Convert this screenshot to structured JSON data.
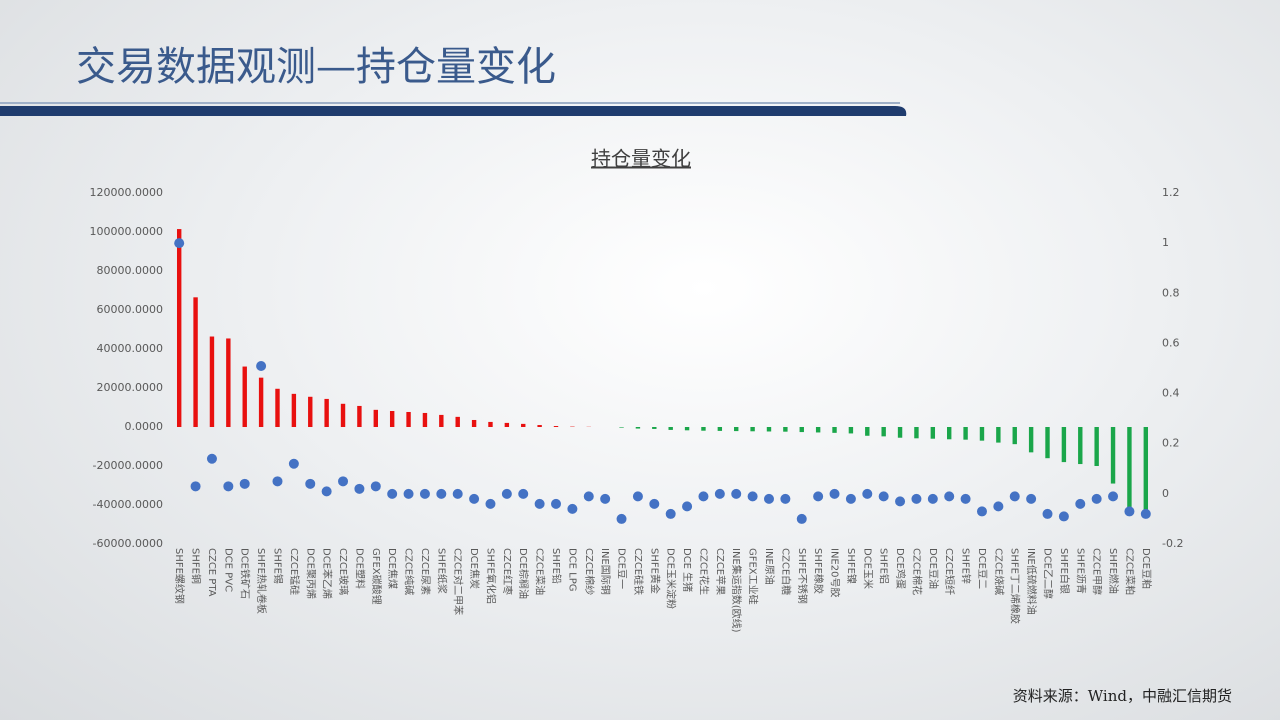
{
  "page": {
    "title": "交易数据观测—持仓量变化",
    "source": "资料来源：Wind，中融汇信期货"
  },
  "chart_data": {
    "type": "bar",
    "title": "持仓量变化",
    "categories": [
      "SHFE螺纹钢",
      "SHFE铜",
      "CZCE PTA",
      "DCE PVC",
      "DCE铁矿石",
      "SHFE热轧卷板",
      "SHFE锡",
      "CZCE锰硅",
      "DCE聚丙烯",
      "DCE苯乙烯",
      "CZCE玻璃",
      "DCE塑料",
      "GFEX碳酸锂",
      "DCE焦煤",
      "CZCE纯碱",
      "CZCE尿素",
      "SHFE纸浆",
      "CZCE对二甲苯",
      "DCE焦炭",
      "SHFE氧化铝",
      "CZCE红枣",
      "DCE棕榈油",
      "CZCE菜油",
      "SHFE铅",
      "DCE LPG",
      "CZCE棉纱",
      "INE国际铜",
      "DCE豆一",
      "CZCE硅铁",
      "SHFE黄金",
      "DCE玉米淀粉",
      "DCE 生猪",
      "CZCE花生",
      "CZCE苹果",
      "INE集运指数(欧线)",
      "GFEX工业硅",
      "INE原油",
      "CZCE白糖",
      "SHFE不锈钢",
      "SHFE橡胶",
      "INE20号胶",
      "SHFE镍",
      "DCE玉米",
      "SHFE铝",
      "DCE鸡蛋",
      "CZCE棉花",
      "DCE豆油",
      "CZCE短纤",
      "SHFE锌",
      "DCE豆二",
      "CZCE烧碱",
      "SHFE丁二烯橡胶",
      "INE低硫燃料油",
      "DCE乙二醇",
      "SHFE白银",
      "SHFE沥青",
      "CZCE甲醇",
      "SHFE燃油",
      "CZCE菜粕",
      "DCE豆粕"
    ],
    "series": [
      {
        "type": "bar",
        "positive_color": "#e8100f",
        "negative_color": "#1aa64a",
        "values": [
          101500,
          66500,
          46400,
          45400,
          31000,
          25300,
          19600,
          17000,
          15500,
          14400,
          11900,
          10800,
          8800,
          8200,
          7700,
          7200,
          6200,
          5200,
          3600,
          2600,
          2100,
          1600,
          1000,
          500,
          200,
          100,
          0,
          -300,
          -800,
          -1000,
          -1500,
          -1700,
          -1900,
          -2000,
          -2100,
          -2200,
          -2300,
          -2400,
          -2600,
          -2800,
          -3000,
          -3300,
          -4500,
          -4800,
          -5500,
          -5800,
          -6000,
          -6300,
          -6500,
          -7000,
          -8000,
          -8800,
          -13000,
          -16000,
          -18000,
          -19000,
          -20000,
          -29000,
          -43000,
          -45000
        ]
      },
      {
        "type": "scatter",
        "axis": "y2",
        "color": "#4472c4",
        "values": [
          1.0,
          0.03,
          0.14,
          0.03,
          0.04,
          0.51,
          0.05,
          0.12,
          0.04,
          0.01,
          0.05,
          0.02,
          0.03,
          0,
          0,
          0,
          0,
          0,
          -0.02,
          -0.04,
          0,
          0,
          -0.04,
          -0.04,
          -0.06,
          -0.01,
          -0.02,
          -0.1,
          -0.01,
          -0.04,
          -0.08,
          -0.05,
          -0.01,
          0,
          0,
          -0.01,
          -0.02,
          -0.02,
          -0.1,
          -0.01,
          0,
          -0.02,
          0,
          -0.01,
          -0.03,
          -0.02,
          -0.02,
          -0.01,
          -0.02,
          -0.07,
          -0.05,
          -0.01,
          -0.02,
          -0.08,
          -0.09,
          -0.04,
          -0.02,
          -0.01,
          -0.07,
          -0.08
        ]
      }
    ],
    "ylim": [
      -60000,
      120000
    ],
    "yticks": [
      {
        "value": 120000,
        "label": "120000.0000"
      },
      {
        "value": 100000,
        "label": "100000.0000"
      },
      {
        "value": 80000,
        "label": "80000.0000"
      },
      {
        "value": 60000,
        "label": "60000.0000"
      },
      {
        "value": 40000,
        "label": "40000.0000"
      },
      {
        "value": 20000,
        "label": "20000.0000"
      },
      {
        "value": 0,
        "label": "0.0000"
      },
      {
        "value": -20000,
        "label": "-20000.0000"
      },
      {
        "value": -40000,
        "label": "-40000.0000"
      },
      {
        "value": -60000,
        "label": "-60000.0000"
      }
    ],
    "y2lim": [
      -0.2,
      1.2
    ],
    "y2ticks": [
      1.2,
      1,
      0.8,
      0.6,
      0.4,
      0.2,
      0,
      -0.2
    ],
    "grid": false
  }
}
